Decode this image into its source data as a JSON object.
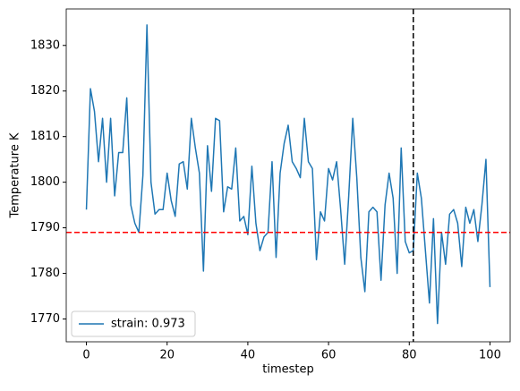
{
  "chart_data": {
    "type": "line",
    "x_label": "timestep",
    "y_label": "Temperature K",
    "x": [
      0,
      1,
      2,
      3,
      4,
      5,
      6,
      7,
      8,
      9,
      10,
      11,
      12,
      13,
      14,
      15,
      16,
      17,
      18,
      19,
      20,
      21,
      22,
      23,
      24,
      25,
      26,
      27,
      28,
      29,
      30,
      31,
      32,
      33,
      34,
      35,
      36,
      37,
      38,
      39,
      40,
      41,
      42,
      43,
      44,
      45,
      46,
      47,
      48,
      49,
      50,
      51,
      52,
      53,
      54,
      55,
      56,
      57,
      58,
      59,
      60,
      61,
      62,
      63,
      64,
      65,
      66,
      67,
      68,
      69,
      70,
      71,
      72,
      73,
      74,
      75,
      76,
      77,
      78,
      79,
      80,
      81,
      82,
      83,
      84,
      85,
      86,
      87,
      88,
      89,
      90,
      91,
      92,
      93,
      94,
      95,
      96,
      97,
      98,
      99,
      100
    ],
    "series": [
      {
        "name": "strain: 0.973",
        "color": "#1f77b4",
        "values": [
          1794,
          1820.5,
          1815.5,
          1804.5,
          1814,
          1800,
          1814,
          1797,
          1806.5,
          1806.5,
          1818.5,
          1795,
          1791,
          1789,
          1801.5,
          1834.5,
          1800,
          1793,
          1794,
          1794,
          1802,
          1796,
          1792.5,
          1804,
          1804.5,
          1798.5,
          1814,
          1807.5,
          1802,
          1780.5,
          1808,
          1798,
          1814,
          1813.5,
          1793.5,
          1799,
          1798.5,
          1807.5,
          1791.5,
          1792.5,
          1788.5,
          1803.5,
          1791,
          1785,
          1788,
          1789,
          1804.5,
          1783.5,
          1802,
          1808.5,
          1812.5,
          1804.5,
          1803,
          1801,
          1814,
          1804.5,
          1803,
          1783,
          1793.5,
          1791.5,
          1803,
          1800.5,
          1804.5,
          1794,
          1782,
          1797,
          1814,
          1801,
          1783.5,
          1776,
          1793.5,
          1794.5,
          1793.5,
          1778.5,
          1795,
          1802,
          1796.5,
          1780,
          1807.5,
          1787,
          1784.5,
          1785,
          1802,
          1796.5,
          1785,
          1773.5,
          1792,
          1769,
          1789,
          1782,
          1793,
          1794,
          1791,
          1781.5,
          1794.5,
          1791,
          1794,
          1787,
          1795,
          1805,
          1777
        ]
      }
    ],
    "hline": {
      "value": 1789,
      "color": "#ff0000"
    },
    "vline": {
      "value": 81,
      "color": "#000000"
    },
    "xlim": [
      -5,
      105
    ],
    "xticks": [
      0,
      20,
      40,
      60,
      80,
      100
    ],
    "ylim": [
      1765,
      1838
    ],
    "yticks": [
      1770,
      1780,
      1790,
      1800,
      1810,
      1820,
      1830
    ],
    "legend": "lower left"
  }
}
